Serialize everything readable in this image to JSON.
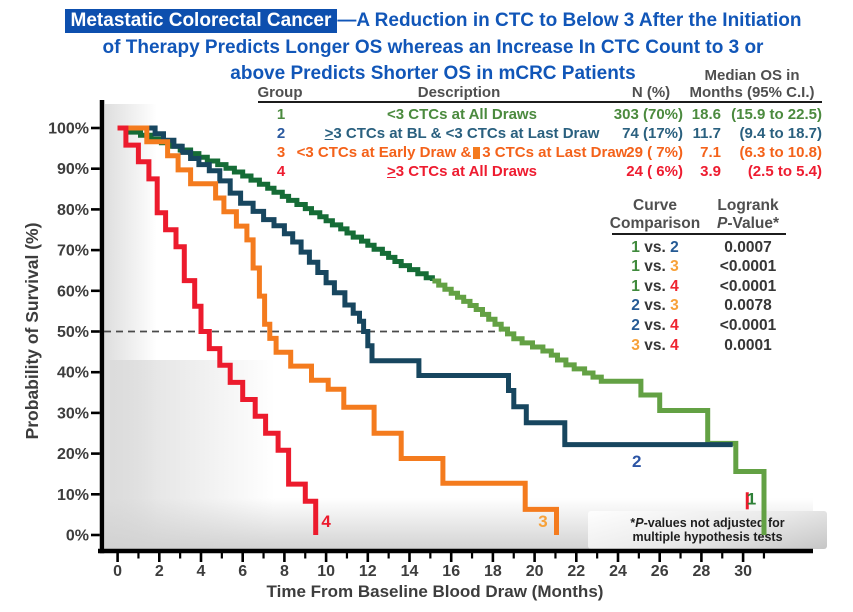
{
  "title": {
    "highlight": "Metastatic Colorectal Cancer",
    "line1_rest": "—A Reduction in CTC to Below 3 After the Initiation",
    "line2": "of Therapy Predicts Longer OS whereas an Increase In CTC Count to 3 or",
    "line3": "above Predicts Shorter OS in mCRC Patients"
  },
  "colors": {
    "title_blue": "#1156b8",
    "title_box_bg": "#0d4fae",
    "header_gray": "#4f4f4f",
    "axis_text": "#3d3d3d",
    "axis_line": "#000000",
    "pvalue_gray": "#363636",
    "group_text": {
      "1": "#4b8a3e",
      "2": "#2a607f",
      "3": "#f4621a",
      "4": "#ee1c30"
    },
    "group_num": {
      "1": "#4b8a3e",
      "2": "#2b5aa0",
      "3": "#f4621a",
      "4": "#ee1c30"
    },
    "logrank_num": {
      "1": "#3f8a3c",
      "2": "#255a94",
      "3": "#f7a139",
      "4": "#ee2430"
    },
    "curves": {
      "1_early": "#156c36",
      "1_late": "#63a144",
      "2": "#17465f",
      "3": "#f47b1e",
      "4": "#ec1b2d"
    }
  },
  "group_table": {
    "headers": {
      "group": "Group",
      "description": "Description",
      "n": "N (%)",
      "median_line1": "Median OS in",
      "median_line2": "Months (95% C.I.)"
    },
    "rows": [
      {
        "group": "1",
        "desc": "<3 CTCs at All Draws",
        "n": "303 (70%)",
        "median": "18.6",
        "ci": "(15.9 to 22.5)"
      },
      {
        "group": "2",
        "desc": "≥3 CTCs at BL & <3 CTCs at Last Draw",
        "n": "74 (17%)",
        "median": "11.7",
        "ci": "(9.4 to 18.7)"
      },
      {
        "group": "3",
        "desc_pre": "<3 CTCs at Early Draw &",
        "missing_glyph": true,
        "desc_post": "3 CTCs at Last Draw",
        "n": "29 ( 7%)",
        "median": "7.1",
        "ci": "(6.3 to 10.8)"
      },
      {
        "group": "4",
        "desc": "≥3 CTCs at All Draws",
        "n": "24 ( 6%)",
        "median": "3.9",
        "ci": "(2.5 to 5.4)"
      }
    ]
  },
  "logrank_table": {
    "headers": {
      "col1_line1": "Curve",
      "col1_line2": "Comparison",
      "col2_line1": "Logrank",
      "col2_p": "P",
      "col2_rest": "-Value*"
    },
    "vs_text": "vs.",
    "rows": [
      {
        "a": "1",
        "b": "2",
        "value": "0.0007"
      },
      {
        "a": "1",
        "b": "3",
        "value": "<0.0001"
      },
      {
        "a": "1",
        "b": "4",
        "value": "<0.0001"
      },
      {
        "a": "2",
        "b": "3",
        "value": "0.0078"
      },
      {
        "a": "2",
        "b": "4",
        "value": "<0.0001"
      },
      {
        "a": "3",
        "b": "4",
        "value": "0.0001"
      }
    ]
  },
  "footnote": {
    "star": "*",
    "p": "P",
    "line1_rest": "-values not adjusted for",
    "line2": "multiple hypothesis tests"
  },
  "chart_data": {
    "type": "line",
    "subtype": "kaplan-meier-step",
    "xlabel": "Time From Baseline Blood Draw (Months)",
    "ylabel": "Probability of Survival (%)",
    "xlim": [
      0,
      31.5
    ],
    "ylim": [
      0,
      100
    ],
    "x_major_ticks": [
      0,
      2,
      4,
      6,
      8,
      10,
      12,
      14,
      16,
      18,
      20,
      22,
      24,
      26,
      28,
      30
    ],
    "x_minor_ticks": [
      1,
      3,
      5,
      7,
      9,
      11,
      13,
      15,
      17,
      19,
      21,
      23,
      25,
      27,
      29,
      31
    ],
    "y_ticks": [
      {
        "v": 0,
        "label": "0%"
      },
      {
        "v": 10,
        "label": "10%"
      },
      {
        "v": 20,
        "label": "20%"
      },
      {
        "v": 30,
        "label": "30%"
      },
      {
        "v": 40,
        "label": "40%"
      },
      {
        "v": 50,
        "label": "50%"
      },
      {
        "v": 60,
        "label": "60%"
      },
      {
        "v": 70,
        "label": "70%"
      },
      {
        "v": 80,
        "label": "80%"
      },
      {
        "v": 90,
        "label": "90%"
      },
      {
        "v": 100,
        "label": "100%"
      }
    ],
    "reference_line": {
      "y": 50,
      "style": "dashed",
      "x_start": 0,
      "x_end": 18.35
    },
    "grid": false,
    "series": [
      {
        "id": "group1",
        "name": "Group 1: <3 CTCs at All Draws",
        "split_at": 15.1,
        "median_os": 18.6,
        "points": [
          [
            0,
            100
          ],
          [
            0.6,
            99
          ],
          [
            1.1,
            98.2
          ],
          [
            1.6,
            97.3
          ],
          [
            2.1,
            96.4
          ],
          [
            2.6,
            95.5
          ],
          [
            3.0,
            94.6
          ],
          [
            3.5,
            93.7
          ],
          [
            3.9,
            92.8
          ],
          [
            4.3,
            91.9
          ],
          [
            4.8,
            91
          ],
          [
            5.2,
            90.1
          ],
          [
            5.6,
            89.2
          ],
          [
            6.0,
            88.2
          ],
          [
            6.4,
            87.2
          ],
          [
            6.8,
            86.2
          ],
          [
            7.2,
            85.2
          ],
          [
            7.5,
            84.2
          ],
          [
            7.9,
            83.2
          ],
          [
            8.2,
            82.2
          ],
          [
            8.6,
            81.2
          ],
          [
            9.0,
            80.2
          ],
          [
            9.3,
            79.2
          ],
          [
            9.7,
            78.2
          ],
          [
            10.0,
            77.2
          ],
          [
            10.3,
            76.2
          ],
          [
            10.7,
            75.2
          ],
          [
            11.0,
            74.2
          ],
          [
            11.3,
            73.2
          ],
          [
            11.7,
            72.2
          ],
          [
            12.0,
            71.2
          ],
          [
            12.3,
            70.2
          ],
          [
            12.7,
            69.2
          ],
          [
            13.0,
            68.2
          ],
          [
            13.3,
            67.2
          ],
          [
            13.6,
            66.2
          ],
          [
            14.0,
            65.2
          ],
          [
            14.4,
            64.2
          ],
          [
            14.8,
            63.2
          ],
          [
            15.1,
            62.4
          ],
          [
            15.4,
            61.4
          ],
          [
            15.7,
            60.4
          ],
          [
            16.0,
            59.4
          ],
          [
            16.3,
            58.4
          ],
          [
            16.6,
            57.4
          ],
          [
            16.9,
            56.4
          ],
          [
            17.2,
            55.4
          ],
          [
            17.5,
            54.2
          ],
          [
            17.8,
            53.0
          ],
          [
            18.1,
            51.8
          ],
          [
            18.4,
            50.6
          ],
          [
            18.7,
            49.4
          ],
          [
            19.0,
            48.2
          ],
          [
            19.4,
            47.2
          ],
          [
            19.9,
            46.2
          ],
          [
            20.4,
            45.2
          ],
          [
            20.8,
            44.2
          ],
          [
            21.1,
            43.0
          ],
          [
            21.5,
            41.8
          ],
          [
            21.9,
            40.8
          ],
          [
            22.4,
            39.8
          ],
          [
            22.8,
            38.8
          ],
          [
            23.2,
            37.8
          ],
          [
            25.1,
            34.4
          ],
          [
            26.0,
            30.6
          ],
          [
            28.3,
            22.5
          ],
          [
            29.65,
            15.6
          ],
          [
            31.0,
            0
          ]
        ]
      },
      {
        "id": "group2",
        "name": "Group 2: ≥3 CTCs at BL & <3 CTCs at Last Draw",
        "median_os": 11.7,
        "points": [
          [
            0,
            100
          ],
          [
            1.8,
            98.6
          ],
          [
            2.2,
            97.0
          ],
          [
            2.7,
            95.5
          ],
          [
            3.1,
            94.0
          ],
          [
            3.5,
            92.5
          ],
          [
            3.9,
            91.0
          ],
          [
            4.4,
            89.5
          ],
          [
            4.9,
            87.0
          ],
          [
            5.4,
            84.0
          ],
          [
            5.9,
            81.5
          ],
          [
            6.5,
            79.5
          ],
          [
            7.0,
            77.5
          ],
          [
            7.5,
            76.0
          ],
          [
            8.0,
            74.0
          ],
          [
            8.4,
            72.0
          ],
          [
            8.8,
            69.5
          ],
          [
            9.2,
            67.0
          ],
          [
            9.6,
            64.5
          ],
          [
            10.0,
            62.0
          ],
          [
            10.4,
            59.5
          ],
          [
            10.9,
            56.5
          ],
          [
            11.3,
            54.5
          ],
          [
            11.6,
            52.5
          ],
          [
            11.8,
            50.0
          ],
          [
            12.0,
            46.5
          ],
          [
            12.2,
            42.8
          ],
          [
            14.45,
            39.2
          ],
          [
            18.75,
            35.5
          ],
          [
            19.0,
            31.5
          ],
          [
            19.6,
            27.6
          ],
          [
            21.45,
            22.2
          ],
          [
            29.5,
            22.2
          ]
        ]
      },
      {
        "id": "group3",
        "name": "Group 3: <3 CTCs at Early Draw & ≥3 CTCs at Last Draw",
        "median_os": 7.1,
        "points": [
          [
            0,
            100
          ],
          [
            1.4,
            96.6
          ],
          [
            2.4,
            93.2
          ],
          [
            2.9,
            89.7
          ],
          [
            3.5,
            86.3
          ],
          [
            4.7,
            82.8
          ],
          [
            5.1,
            79.4
          ],
          [
            5.7,
            75.9
          ],
          [
            6.2,
            72.5
          ],
          [
            6.5,
            65.6
          ],
          [
            6.8,
            58.7
          ],
          [
            7.05,
            51.8
          ],
          [
            7.3,
            48.3
          ],
          [
            7.6,
            44.9
          ],
          [
            8.3,
            41.5
          ],
          [
            9.3,
            38.0
          ],
          [
            10.1,
            35.8
          ],
          [
            10.85,
            31.4
          ],
          [
            12.3,
            25.0
          ],
          [
            13.6,
            18.8
          ],
          [
            15.6,
            12.7
          ],
          [
            19.55,
            6.3
          ],
          [
            21.05,
            0
          ]
        ]
      },
      {
        "id": "group4",
        "name": "Group 4: ≥3 CTCs at All Draws",
        "median_os": 3.9,
        "points": [
          [
            0,
            100
          ],
          [
            0.4,
            95.8
          ],
          [
            1.0,
            91.7
          ],
          [
            1.5,
            87.5
          ],
          [
            1.9,
            79.2
          ],
          [
            2.3,
            75.0
          ],
          [
            2.8,
            70.8
          ],
          [
            3.2,
            62.5
          ],
          [
            3.7,
            56.2
          ],
          [
            4.0,
            50.0
          ],
          [
            4.4,
            45.8
          ],
          [
            4.9,
            41.7
          ],
          [
            5.4,
            37.5
          ],
          [
            6.0,
            33.3
          ],
          [
            6.6,
            29.2
          ],
          [
            7.1,
            25.0
          ],
          [
            7.7,
            20.8
          ],
          [
            8.2,
            12.5
          ],
          [
            9.0,
            8.3
          ],
          [
            9.5,
            0
          ]
        ]
      }
    ],
    "curve_labels": [
      {
        "text": "1",
        "month": 30.4,
        "pct": 9.0,
        "color": "#2e8038"
      },
      {
        "text": "2",
        "month": 24.9,
        "pct": 18.2,
        "color": "#2c55a5"
      },
      {
        "text": "3",
        "month": 20.4,
        "pct": 3.4,
        "color": "#f7a139"
      },
      {
        "text": "4",
        "month": 10.0,
        "pct": 3.4,
        "color": "#ec1b2d"
      }
    ],
    "censor_tick": {
      "month": 30.2,
      "pct_low": 6.3,
      "pct_high": 10.5,
      "color": "#ec1b2d"
    }
  }
}
